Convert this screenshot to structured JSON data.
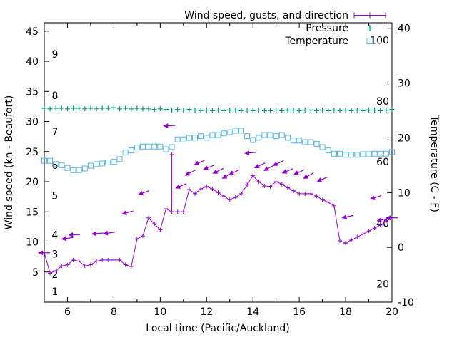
{
  "legend": {
    "wind_label": "Wind speed, gusts, and direction",
    "pressure_label": "Pressure",
    "temperature_label": "Temperature"
  },
  "axes": {
    "x_label": "Local time (Pacific/Auckland)",
    "y_left_label": "Wind speed (kn - Beaufort)",
    "y_right_label": "Temperature (C - F)",
    "x_range": [
      5,
      20
    ],
    "x_major_ticks": [
      6,
      8,
      10,
      12,
      14,
      16,
      18,
      20
    ],
    "x_minor_ticks": [
      5,
      7,
      9,
      11,
      13,
      15,
      17,
      19
    ],
    "y_left_range": [
      0,
      46.4
    ],
    "y_left_ticks": [
      5,
      10,
      15,
      20,
      25,
      30,
      35,
      40,
      45
    ],
    "beaufort_labels": [
      {
        "value": 1.8,
        "label": "1"
      },
      {
        "value": 4.6,
        "label": "2"
      },
      {
        "value": 8.0,
        "label": "3"
      },
      {
        "value": 11.2,
        "label": "4"
      },
      {
        "value": 17.7,
        "label": "5"
      },
      {
        "value": 22.7,
        "label": "6"
      },
      {
        "value": 28.3,
        "label": "7"
      },
      {
        "value": 34.3,
        "label": "8"
      },
      {
        "value": 41.2,
        "label": "9"
      }
    ],
    "y_right_range": [
      -10,
      41
    ],
    "y_right_ticks": [
      -10,
      0,
      10,
      20,
      30,
      40
    ],
    "fahrenheit_labels": [
      {
        "c": -6.7,
        "label": "20"
      },
      {
        "c": 4.4,
        "label": "40"
      },
      {
        "c": 15.6,
        "label": "60"
      },
      {
        "c": 26.7,
        "label": "80"
      },
      {
        "c": 37.8,
        "label": "100"
      }
    ]
  },
  "colors": {
    "wind": "#9400d3",
    "pressure": "#009e73",
    "temperature": "#56b4e9",
    "axis": "#000000",
    "background": "#ffffff"
  },
  "chart_data": {
    "type": "line",
    "title": "Wind speed, gusts, and direction / Pressure / Temperature",
    "xlabel": "Local time (Pacific/Auckland)",
    "ylabel_left": "Wind speed (kn - Beaufort)",
    "ylabel_right": "Temperature (C - F)",
    "x_hours": [
      5,
      5.25,
      5.5,
      5.75,
      6,
      6.25,
      6.5,
      6.75,
      7,
      7.25,
      7.5,
      7.75,
      8,
      8.25,
      8.5,
      8.75,
      9,
      9.25,
      9.5,
      9.75,
      10,
      10.25,
      10.5,
      10.75,
      11,
      11.25,
      11.5,
      11.75,
      12,
      12.25,
      12.5,
      12.75,
      13,
      13.25,
      13.5,
      13.75,
      14,
      14.25,
      14.5,
      14.75,
      15,
      15.25,
      15.5,
      15.75,
      16,
      16.25,
      16.5,
      16.75,
      17,
      17.25,
      17.5,
      17.75,
      18,
      18.25,
      18.5,
      18.75,
      19,
      19.25,
      19.5,
      19.75,
      20
    ],
    "series": [
      {
        "name": "Wind speed (kn)",
        "axis": "left",
        "values": [
          8.2,
          4.8,
          5.2,
          6.0,
          6.2,
          7.0,
          6.8,
          6.0,
          6.2,
          6.8,
          7.0,
          7.0,
          7.0,
          7.0,
          6.2,
          5.9,
          10.5,
          11.0,
          14.0,
          13.0,
          12.0,
          15.5,
          15.0,
          15.0,
          15.0,
          18.7,
          18.0,
          18.8,
          19.2,
          18.8,
          18.2,
          17.6,
          17.0,
          17.4,
          18.0,
          19.5,
          21.0,
          20.0,
          19.3,
          19.2,
          20.0,
          19.6,
          19.0,
          18.5,
          18.0,
          18.0,
          18.0,
          17.6,
          17.0,
          16.6,
          16.0,
          10.2,
          9.8,
          10.3,
          10.8,
          11.3,
          11.8,
          12.3,
          12.8,
          13.4,
          14.0
        ]
      },
      {
        "name": "Pressure (plotted position, kn axis units)",
        "axis": "left",
        "values": [
          32.2,
          32.1,
          32.2,
          32.2,
          32.1,
          32.2,
          32.2,
          32.1,
          32.2,
          32.1,
          32.2,
          32.2,
          32.3,
          32.1,
          32.2,
          32.1,
          32.2,
          32.1,
          32.1,
          32.0,
          32.1,
          32.0,
          31.9,
          32.0,
          31.9,
          32.0,
          31.9,
          31.8,
          31.9,
          31.8,
          31.9,
          31.8,
          31.9,
          31.9,
          31.8,
          31.9,
          31.8,
          31.9,
          31.8,
          31.8,
          31.9,
          31.8,
          31.9,
          31.9,
          31.8,
          31.9,
          31.9,
          31.8,
          31.9,
          31.8,
          31.9,
          31.8,
          31.9,
          31.8,
          31.9,
          31.8,
          31.9,
          31.9,
          31.8,
          31.9,
          32.0
        ]
      },
      {
        "name": "Temperature (C)",
        "axis": "right",
        "values": [
          15.8,
          15.8,
          15.2,
          15.0,
          14.5,
          14.1,
          14.1,
          14.4,
          14.9,
          15.2,
          15.3,
          15.5,
          15.6,
          16.1,
          17.3,
          17.7,
          18.2,
          18.4,
          18.4,
          18.4,
          18.4,
          17.9,
          18.3,
          19.7,
          19.7,
          20.0,
          20.0,
          20.3,
          20.0,
          20.5,
          20.5,
          20.8,
          21.0,
          21.3,
          21.3,
          20.3,
          19.6,
          20.0,
          20.5,
          20.5,
          20.3,
          20.5,
          20.0,
          19.5,
          19.5,
          19.2,
          19.2,
          18.9,
          18.3,
          17.7,
          17.1,
          17.1,
          16.9,
          16.9,
          16.9,
          17.0,
          17.0,
          17.1,
          17.1,
          17.1,
          17.4
        ]
      }
    ],
    "gusts": [
      {
        "t": 10.5,
        "from": 15.0,
        "to": 24.5
      }
    ],
    "direction_arrows": [
      {
        "t": 5.0,
        "kn": 8.2,
        "angle": 180
      },
      {
        "t": 6.0,
        "kn": 10.6,
        "angle": 172
      },
      {
        "t": 6.3,
        "kn": 11.2,
        "angle": 178
      },
      {
        "t": 7.3,
        "kn": 11.4,
        "angle": 175
      },
      {
        "t": 7.8,
        "kn": 11.5,
        "angle": 172
      },
      {
        "t": 8.6,
        "kn": 14.9,
        "angle": 165
      },
      {
        "t": 9.3,
        "kn": 18.2,
        "angle": 160
      },
      {
        "t": 10.4,
        "kn": 29.3,
        "angle": 178
      },
      {
        "t": 10.9,
        "kn": 19.3,
        "angle": 158
      },
      {
        "t": 11.3,
        "kn": 21.5,
        "angle": 152
      },
      {
        "t": 11.7,
        "kn": 23.2,
        "angle": 155
      },
      {
        "t": 12.1,
        "kn": 22.4,
        "angle": 158
      },
      {
        "t": 12.5,
        "kn": 21.8,
        "angle": 155
      },
      {
        "t": 12.9,
        "kn": 21.0,
        "angle": 152
      },
      {
        "t": 13.2,
        "kn": 21.6,
        "angle": 155
      },
      {
        "t": 13.9,
        "kn": 24.8,
        "angle": 175
      },
      {
        "t": 14.3,
        "kn": 22.7,
        "angle": 155
      },
      {
        "t": 14.7,
        "kn": 22.3,
        "angle": 152
      },
      {
        "t": 15.1,
        "kn": 23.1,
        "angle": 155
      },
      {
        "t": 15.5,
        "kn": 21.8,
        "angle": 158
      },
      {
        "t": 16.0,
        "kn": 21.6,
        "angle": 155
      },
      {
        "t": 16.4,
        "kn": 21.0,
        "angle": 152
      },
      {
        "t": 17.0,
        "kn": 20.4,
        "angle": 155
      },
      {
        "t": 18.1,
        "kn": 14.2,
        "angle": 168
      },
      {
        "t": 19.3,
        "kn": 17.4,
        "angle": 162
      },
      {
        "t": 19.6,
        "kn": 13.7,
        "angle": 168
      },
      {
        "t": 20.0,
        "kn": 14.0,
        "angle": 180
      }
    ]
  }
}
